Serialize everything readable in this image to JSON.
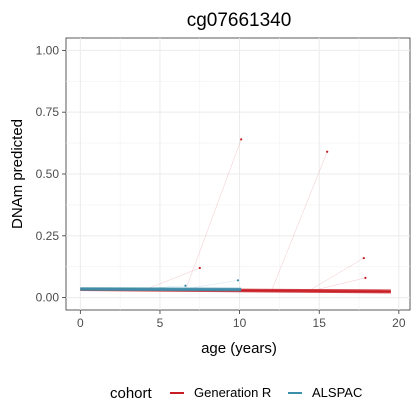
{
  "chart_data": {
    "type": "scatter",
    "title": "cg07661340",
    "xlabel": "age (years)",
    "ylabel": "DNAm predicted",
    "xlim": [
      -0.9,
      20.7
    ],
    "ylim": [
      -0.05,
      1.05
    ],
    "x_ticks": [
      0,
      5,
      10,
      15,
      20
    ],
    "y_ticks": [
      0.0,
      0.25,
      0.5,
      0.75,
      1.0
    ],
    "y_tick_labels": [
      "0.00",
      "0.25",
      "0.50",
      "0.75",
      "1.00"
    ],
    "grid": true,
    "legend_position": "bottom",
    "legend_title": "cohort",
    "series": [
      {
        "name": "Generation R",
        "color": "#c81d25",
        "band": {
          "x": [
            0,
            19.5
          ],
          "y_low": [
            0.027,
            0.017
          ],
          "y_high": [
            0.04,
            0.033
          ]
        },
        "outliers": [
          {
            "x": 7.5,
            "y": 0.12
          },
          {
            "x": 10.1,
            "y": 0.64
          },
          {
            "x": 15.5,
            "y": 0.59
          },
          {
            "x": 17.8,
            "y": 0.16
          },
          {
            "x": 17.9,
            "y": 0.08
          }
        ]
      },
      {
        "name": "ALSPAC",
        "color": "#3c8fab",
        "band": {
          "x": [
            0,
            10.1
          ],
          "y_low": [
            0.028,
            0.026
          ],
          "y_high": [
            0.042,
            0.04
          ]
        },
        "outliers": [
          {
            "x": 9.9,
            "y": 0.07
          },
          {
            "x": 6.6,
            "y": 0.048
          }
        ]
      }
    ]
  }
}
